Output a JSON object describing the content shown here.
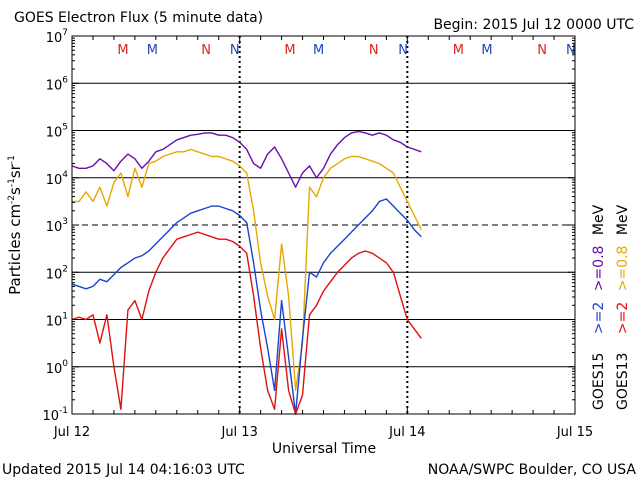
{
  "chart_data": {
    "type": "line",
    "title": "GOES Electron Flux (5 minute data)",
    "begin_label": "Begin: 2015 Jul 12 0000 UTC",
    "xlabel": "Universal Time",
    "ylabel": {
      "base": "Particles cm",
      "e1": "-2",
      "mid1": "s",
      "e2": "-1",
      "mid2": "sr",
      "e3": "-1"
    },
    "xlim": [
      0,
      72
    ],
    "x_unit": "hours since 2015 Jul 12 0000 UTC",
    "x_ticks": [
      {
        "value": 0,
        "label": "Jul 12"
      },
      {
        "value": 24,
        "label": "Jul 13"
      },
      {
        "value": 48,
        "label": "Jul 14"
      },
      {
        "value": 72,
        "label": "Jul 15"
      }
    ],
    "ylim_exp": [
      -1,
      7
    ],
    "y_scale": "log10",
    "y_ticks": [
      {
        "exp": -1,
        "base": "10",
        "sup": "-1"
      },
      {
        "exp": 0,
        "base": "10",
        "sup": "0"
      },
      {
        "exp": 1,
        "base": "10",
        "sup": "1"
      },
      {
        "exp": 2,
        "base": "10",
        "sup": "2"
      },
      {
        "exp": 3,
        "base": "10",
        "sup": "3"
      },
      {
        "exp": 4,
        "base": "10",
        "sup": "4"
      },
      {
        "exp": 5,
        "base": "10",
        "sup": "5"
      },
      {
        "exp": 6,
        "base": "10",
        "sup": "6"
      },
      {
        "exp": 7,
        "base": "10",
        "sup": "7"
      }
    ],
    "threshold_exp": 3,
    "magnetopause_markers": [
      {
        "hour": 7.3,
        "label": "M",
        "color": "#dd2222"
      },
      {
        "hour": 11.5,
        "label": "M",
        "color": "#2244bb"
      },
      {
        "hour": 19.2,
        "label": "N",
        "color": "#dd2222"
      },
      {
        "hour": 23.3,
        "label": "N",
        "color": "#2244bb"
      },
      {
        "hour": 31.2,
        "label": "M",
        "color": "#dd2222"
      },
      {
        "hour": 35.3,
        "label": "M",
        "color": "#2244bb"
      },
      {
        "hour": 43.2,
        "label": "N",
        "color": "#dd2222"
      },
      {
        "hour": 47.4,
        "label": "N",
        "color": "#2244bb"
      },
      {
        "hour": 55.3,
        "label": "M",
        "color": "#dd2222"
      },
      {
        "hour": 59.4,
        "label": "M",
        "color": "#2244bb"
      },
      {
        "hour": 67.3,
        "label": "N",
        "color": "#dd2222"
      },
      {
        "hour": 71.4,
        "label": "N",
        "color": "#2244bb"
      }
    ],
    "day_dotted_lines": [
      24,
      48
    ],
    "series": [
      {
        "name": "GOES15 >=0.8 MeV",
        "color": "#6a0dad",
        "x": [
          0,
          1,
          2,
          3,
          4,
          5,
          6,
          7,
          8,
          9,
          10,
          11,
          12,
          13,
          14,
          15,
          16,
          17,
          18,
          19,
          20,
          21,
          22,
          23,
          24,
          25,
          26,
          27,
          28,
          29,
          30,
          31,
          32,
          33,
          34,
          35,
          36,
          37,
          38,
          39,
          40,
          41,
          42,
          43,
          44,
          45,
          46,
          47,
          48,
          49,
          50
        ],
        "y": [
          4.25,
          4.2,
          4.2,
          4.25,
          4.4,
          4.3,
          4.15,
          4.35,
          4.5,
          4.4,
          4.2,
          4.35,
          4.55,
          4.6,
          4.7,
          4.8,
          4.85,
          4.9,
          4.92,
          4.95,
          4.95,
          4.9,
          4.9,
          4.85,
          4.75,
          4.6,
          4.3,
          4.2,
          4.5,
          4.65,
          4.4,
          4.1,
          3.8,
          4.1,
          4.25,
          4.0,
          4.2,
          4.5,
          4.7,
          4.85,
          4.95,
          4.98,
          4.95,
          4.9,
          4.95,
          4.9,
          4.8,
          4.75,
          4.65,
          4.6,
          4.55
        ]
      },
      {
        "name": "GOES13 >=0.8 MeV",
        "color": "#e6a800",
        "x": [
          0,
          1,
          2,
          3,
          4,
          5,
          6,
          7,
          8,
          9,
          10,
          11,
          12,
          13,
          14,
          15,
          16,
          17,
          18,
          19,
          20,
          21,
          22,
          23,
          24,
          25,
          26,
          27,
          28,
          29,
          30,
          31,
          32,
          33,
          34,
          35,
          36,
          37,
          38,
          39,
          40,
          41,
          42,
          43,
          44,
          45,
          46,
          47,
          48,
          49,
          50
        ],
        "y": [
          3.5,
          3.5,
          3.7,
          3.5,
          3.8,
          3.4,
          3.9,
          4.1,
          3.6,
          4.2,
          3.8,
          4.3,
          4.35,
          4.45,
          4.5,
          4.55,
          4.55,
          4.6,
          4.55,
          4.5,
          4.45,
          4.45,
          4.4,
          4.35,
          4.25,
          4.1,
          3.3,
          2.2,
          1.5,
          1.0,
          2.6,
          1.5,
          -0.5,
          0.5,
          3.8,
          3.6,
          4.0,
          4.2,
          4.3,
          4.4,
          4.45,
          4.45,
          4.4,
          4.35,
          4.3,
          4.2,
          4.1,
          3.8,
          3.5,
          3.2,
          2.9
        ]
      },
      {
        "name": "GOES15 >=2 MeV",
        "color": "#1a44cc",
        "x": [
          0,
          1,
          2,
          3,
          4,
          5,
          6,
          7,
          8,
          9,
          10,
          11,
          12,
          13,
          14,
          15,
          16,
          17,
          18,
          19,
          20,
          21,
          22,
          23,
          24,
          25,
          26,
          27,
          28,
          29,
          30,
          31,
          32,
          33,
          34,
          35,
          36,
          37,
          38,
          39,
          40,
          41,
          42,
          43,
          44,
          45,
          46,
          47,
          48,
          49,
          50
        ],
        "y": [
          1.75,
          1.7,
          1.65,
          1.7,
          1.85,
          1.8,
          1.95,
          2.1,
          2.2,
          2.3,
          2.35,
          2.45,
          2.6,
          2.75,
          2.9,
          3.05,
          3.15,
          3.25,
          3.3,
          3.35,
          3.4,
          3.4,
          3.35,
          3.3,
          3.2,
          3.05,
          2.2,
          1.2,
          0.4,
          -0.5,
          1.4,
          0.2,
          -1.0,
          0.6,
          2.0,
          1.9,
          2.2,
          2.4,
          2.55,
          2.7,
          2.85,
          3.0,
          3.15,
          3.3,
          3.5,
          3.55,
          3.4,
          3.25,
          3.1,
          2.9,
          2.75
        ]
      },
      {
        "name": "GOES13 >=2 MeV",
        "color": "#e01010",
        "x": [
          0,
          1,
          2,
          3,
          4,
          5,
          6,
          7,
          8,
          9,
          10,
          11,
          12,
          13,
          14,
          15,
          16,
          17,
          18,
          19,
          20,
          21,
          22,
          23,
          24,
          25,
          26,
          27,
          28,
          29,
          30,
          31,
          32,
          33,
          34,
          35,
          36,
          37,
          38,
          39,
          40,
          41,
          42,
          43,
          44,
          45,
          46,
          47,
          48,
          49,
          50
        ],
        "y": [
          1.0,
          1.05,
          1.0,
          1.1,
          0.5,
          1.1,
          0.0,
          -0.9,
          1.2,
          1.4,
          1.0,
          1.6,
          2.0,
          2.3,
          2.5,
          2.7,
          2.75,
          2.8,
          2.85,
          2.8,
          2.75,
          2.7,
          2.7,
          2.65,
          2.55,
          2.4,
          1.5,
          0.4,
          -0.5,
          -0.9,
          0.8,
          -0.5,
          -1.0,
          -0.6,
          1.1,
          1.3,
          1.6,
          1.8,
          2.0,
          2.15,
          2.3,
          2.4,
          2.45,
          2.4,
          2.3,
          2.2,
          2.0,
          1.5,
          1.0,
          0.8,
          0.6
        ]
      }
    ],
    "legend": [
      {
        "text": "GOES15",
        "color": "#000000"
      },
      {
        "text": ">=2",
        "color": "#1a44cc"
      },
      {
        "text": ">=0.8",
        "color": "#6a0dad"
      },
      {
        "text": "MeV",
        "color": "#000000"
      },
      {
        "text": "GOES13",
        "color": "#000000"
      },
      {
        "text": ">=2",
        "color": "#e01010"
      },
      {
        "text": ">=0.8",
        "color": "#e6a800"
      },
      {
        "text": "MeV",
        "color": "#000000"
      }
    ]
  },
  "footer": {
    "updated": "Updated 2015 Jul 14 04:16:03 UTC",
    "credit": "NOAA/SWPC Boulder, CO USA"
  }
}
